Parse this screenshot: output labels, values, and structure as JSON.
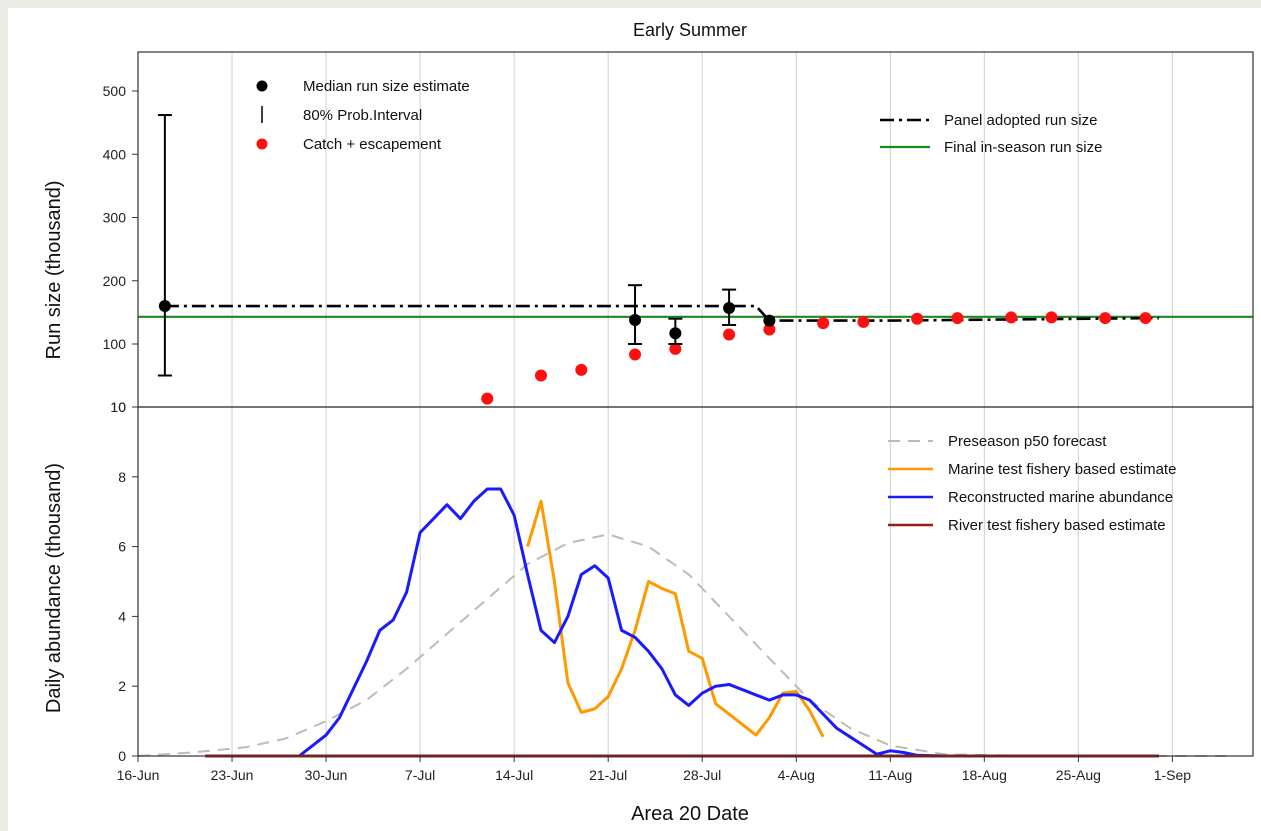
{
  "chart_data": {
    "title": "Early Summer",
    "xlabel": "Area 20 Date",
    "x_tick_labels": [
      "16-Jun",
      "23-Jun",
      "30-Jun",
      "7-Jul",
      "14-Jul",
      "21-Jul",
      "28-Jul",
      "4-Aug",
      "11-Aug",
      "18-Aug",
      "25-Aug",
      "1-Sep"
    ],
    "panels": [
      {
        "type": "scatter",
        "ylabel": "Run size (thousand)",
        "y_tick_labels": [
          "10",
          "100",
          "200",
          "300",
          "400",
          "500"
        ],
        "legend_left": [
          {
            "label": "Median run size estimate",
            "symbol": "black-dot"
          },
          {
            "label": "80% Prob.Interval",
            "symbol": "vertical-bar"
          },
          {
            "label": "Catch + escapement",
            "symbol": "red-dot"
          }
        ],
        "legend_right": [
          {
            "label": "Panel adopted run size",
            "symbol": "dash-dot",
            "color": "#000000"
          },
          {
            "label": "Final in-season run size",
            "symbol": "line",
            "color": "#1a8a1a"
          }
        ],
        "median_estimates": [
          {
            "x": "18-Jun",
            "median": 160,
            "lower": 55,
            "upper": 462
          },
          {
            "x": "23-Jul",
            "median": 138,
            "lower": 100,
            "upper": 193
          },
          {
            "x": "26-Jul",
            "median": 117,
            "lower": 100,
            "upper": 140
          },
          {
            "x": "30-Jul",
            "median": 157,
            "lower": 130,
            "upper": 186
          },
          {
            "x": "2-Aug",
            "median": 137,
            "lower": 137,
            "upper": 137
          }
        ],
        "catch_escapement": [
          {
            "x": "12-Jul",
            "y": 22
          },
          {
            "x": "16-Jul",
            "y": 55
          },
          {
            "x": "19-Jul",
            "y": 63
          },
          {
            "x": "23-Jul",
            "y": 85
          },
          {
            "x": "26-Jul",
            "y": 93
          },
          {
            "x": "30-Jul",
            "y": 115
          },
          {
            "x": "2-Aug",
            "y": 123
          },
          {
            "x": "6-Aug",
            "y": 133
          },
          {
            "x": "9-Aug",
            "y": 135
          },
          {
            "x": "13-Aug",
            "y": 140
          },
          {
            "x": "16-Aug",
            "y": 141
          },
          {
            "x": "20-Aug",
            "y": 142
          },
          {
            "x": "23-Aug",
            "y": 142
          },
          {
            "x": "27-Aug",
            "y": 141
          },
          {
            "x": "30-Aug",
            "y": 141
          }
        ],
        "panel_adopted_run_size": [
          {
            "x": "18-Jun",
            "y": 160
          },
          {
            "x": "1-Aug",
            "y": 160
          },
          {
            "x": "2-Aug",
            "y": 137
          },
          {
            "x": "11-Aug",
            "y": 137
          },
          {
            "x": "31-Aug",
            "y": 141
          }
        ],
        "final_in_season_run_size": 143
      },
      {
        "type": "line",
        "ylabel": "Daily abundance (thousand)",
        "y_tick_labels": [
          "0",
          "2",
          "4",
          "6",
          "8",
          "10"
        ],
        "series": [
          {
            "name": "Preseason p50 forecast",
            "color": "#bbbbbb",
            "style": "dashed",
            "points": [
              {
                "x": "16-Jun",
                "y": 0
              },
              {
                "x": "20-Jun",
                "y": 0.1
              },
              {
                "x": "24-Jun",
                "y": 0.25
              },
              {
                "x": "27-Jun",
                "y": 0.5
              },
              {
                "x": "30-Jun",
                "y": 1.0
              },
              {
                "x": "3-Jul",
                "y": 1.6
              },
              {
                "x": "6-Jul",
                "y": 2.5
              },
              {
                "x": "9-Jul",
                "y": 3.5
              },
              {
                "x": "12-Jul",
                "y": 4.5
              },
              {
                "x": "15-Jul",
                "y": 5.5
              },
              {
                "x": "18-Jul",
                "y": 6.1
              },
              {
                "x": "21-Jul",
                "y": 6.35
              },
              {
                "x": "24-Jul",
                "y": 6.0
              },
              {
                "x": "27-Jul",
                "y": 5.2
              },
              {
                "x": "30-Jul",
                "y": 4.0
              },
              {
                "x": "2-Aug",
                "y": 2.8
              },
              {
                "x": "5-Aug",
                "y": 1.6
              },
              {
                "x": "8-Aug",
                "y": 0.8
              },
              {
                "x": "11-Aug",
                "y": 0.3
              },
              {
                "x": "15-Aug",
                "y": 0.05
              },
              {
                "x": "22-Aug",
                "y": 0
              },
              {
                "x": "5-Sep",
                "y": 0
              }
            ]
          },
          {
            "name": "Marine test fishery based estimate",
            "color": "#ff9900",
            "style": "solid",
            "points": [
              {
                "x": "15-Jul",
                "y": 6.0
              },
              {
                "x": "16-Jul",
                "y": 7.3
              },
              {
                "x": "17-Jul",
                "y": 5.0
              },
              {
                "x": "18-Jul",
                "y": 2.1
              },
              {
                "x": "19-Jul",
                "y": 1.25
              },
              {
                "x": "20-Jul",
                "y": 1.35
              },
              {
                "x": "21-Jul",
                "y": 1.7
              },
              {
                "x": "22-Jul",
                "y": 2.5
              },
              {
                "x": "23-Jul",
                "y": 3.6
              },
              {
                "x": "24-Jul",
                "y": 5.0
              },
              {
                "x": "25-Jul",
                "y": 4.8
              },
              {
                "x": "26-Jul",
                "y": 4.65
              },
              {
                "x": "27-Jul",
                "y": 3.0
              },
              {
                "x": "28-Jul",
                "y": 2.8
              },
              {
                "x": "29-Jul",
                "y": 1.5
              },
              {
                "x": "30-Jul",
                "y": 1.2
              },
              {
                "x": "31-Jul",
                "y": 0.9
              },
              {
                "x": "1-Aug",
                "y": 0.6
              },
              {
                "x": "2-Aug",
                "y": 1.1
              },
              {
                "x": "3-Aug",
                "y": 1.8
              },
              {
                "x": "4-Aug",
                "y": 1.85
              },
              {
                "x": "5-Aug",
                "y": 1.3
              },
              {
                "x": "6-Aug",
                "y": 0.55
              }
            ]
          },
          {
            "name": "Reconstructed marine abundance",
            "color": "#1a1aff",
            "style": "solid",
            "points": [
              {
                "x": "28-Jun",
                "y": 0
              },
              {
                "x": "29-Jun",
                "y": 0.3
              },
              {
                "x": "30-Jun",
                "y": 0.6
              },
              {
                "x": "1-Jul",
                "y": 1.1
              },
              {
                "x": "2-Jul",
                "y": 1.9
              },
              {
                "x": "3-Jul",
                "y": 2.7
              },
              {
                "x": "4-Jul",
                "y": 3.6
              },
              {
                "x": "5-Jul",
                "y": 3.9
              },
              {
                "x": "6-Jul",
                "y": 4.7
              },
              {
                "x": "7-Jul",
                "y": 6.4
              },
              {
                "x": "8-Jul",
                "y": 6.8
              },
              {
                "x": "9-Jul",
                "y": 7.2
              },
              {
                "x": "10-Jul",
                "y": 6.8
              },
              {
                "x": "11-Jul",
                "y": 7.3
              },
              {
                "x": "12-Jul",
                "y": 7.65
              },
              {
                "x": "13-Jul",
                "y": 7.65
              },
              {
                "x": "14-Jul",
                "y": 6.9
              },
              {
                "x": "15-Jul",
                "y": 5.2
              },
              {
                "x": "16-Jul",
                "y": 3.6
              },
              {
                "x": "17-Jul",
                "y": 3.25
              },
              {
                "x": "18-Jul",
                "y": 4.0
              },
              {
                "x": "19-Jul",
                "y": 5.2
              },
              {
                "x": "20-Jul",
                "y": 5.45
              },
              {
                "x": "21-Jul",
                "y": 5.1
              },
              {
                "x": "22-Jul",
                "y": 3.6
              },
              {
                "x": "23-Jul",
                "y": 3.4
              },
              {
                "x": "24-Jul",
                "y": 3.0
              },
              {
                "x": "25-Jul",
                "y": 2.5
              },
              {
                "x": "26-Jul",
                "y": 1.75
              },
              {
                "x": "27-Jul",
                "y": 1.45
              },
              {
                "x": "28-Jul",
                "y": 1.8
              },
              {
                "x": "29-Jul",
                "y": 2.0
              },
              {
                "x": "30-Jul",
                "y": 2.05
              },
              {
                "x": "31-Jul",
                "y": 1.9
              },
              {
                "x": "1-Aug",
                "y": 1.75
              },
              {
                "x": "2-Aug",
                "y": 1.6
              },
              {
                "x": "3-Aug",
                "y": 1.75
              },
              {
                "x": "4-Aug",
                "y": 1.75
              },
              {
                "x": "5-Aug",
                "y": 1.6
              },
              {
                "x": "6-Aug",
                "y": 1.2
              },
              {
                "x": "7-Aug",
                "y": 0.8
              },
              {
                "x": "8-Aug",
                "y": 0.55
              },
              {
                "x": "9-Aug",
                "y": 0.3
              },
              {
                "x": "10-Aug",
                "y": 0.05
              },
              {
                "x": "11-Aug",
                "y": 0.15
              },
              {
                "x": "12-Aug",
                "y": 0.1
              },
              {
                "x": "13-Aug",
                "y": 0.02
              },
              {
                "x": "15-Aug",
                "y": 0
              },
              {
                "x": "30-Aug",
                "y": 0
              }
            ]
          },
          {
            "name": "River test fishery based estimate",
            "color": "#9b1c1c",
            "style": "solid",
            "points": [
              {
                "x": "21-Jun",
                "y": 0
              },
              {
                "x": "27-Jun",
                "y": 0
              },
              {
                "x": "28-Aug",
                "y": 0
              },
              {
                "x": "31-Aug",
                "y": 0
              }
            ]
          }
        ]
      }
    ]
  }
}
